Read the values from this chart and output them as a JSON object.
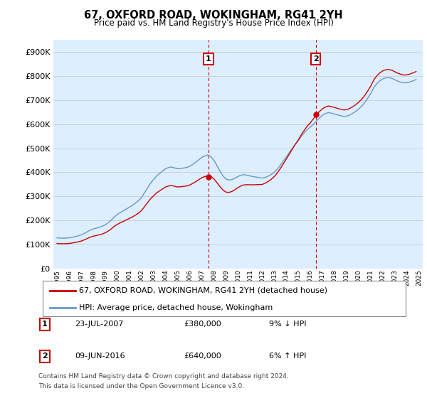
{
  "title": "67, OXFORD ROAD, WOKINGHAM, RG41 2YH",
  "subtitle": "Price paid vs. HM Land Registry's House Price Index (HPI)",
  "ylim": [
    0,
    950000
  ],
  "yticks": [
    0,
    100000,
    200000,
    300000,
    400000,
    500000,
    600000,
    700000,
    800000,
    900000
  ],
  "legend_line1": "67, OXFORD ROAD, WOKINGHAM, RG41 2YH (detached house)",
  "legend_line2": "HPI: Average price, detached house, Wokingham",
  "transaction1_date": "23-JUL-2007",
  "transaction1_price": "£380,000",
  "transaction1_hpi": "9% ↓ HPI",
  "transaction2_date": "09-JUN-2016",
  "transaction2_price": "£640,000",
  "transaction2_hpi": "6% ↑ HPI",
  "footnote1": "Contains HM Land Registry data © Crown copyright and database right 2024.",
  "footnote2": "This data is licensed under the Open Government Licence v3.0.",
  "color_red": "#cc0000",
  "color_blue": "#6699cc",
  "color_blue_fill": "#cce0f0",
  "background_color": "#ddeeff",
  "t1_year": 2007.55,
  "t2_year": 2016.44,
  "t1_price": 380000,
  "t2_price": 640000,
  "xstart": 1995,
  "xend": 2025
}
